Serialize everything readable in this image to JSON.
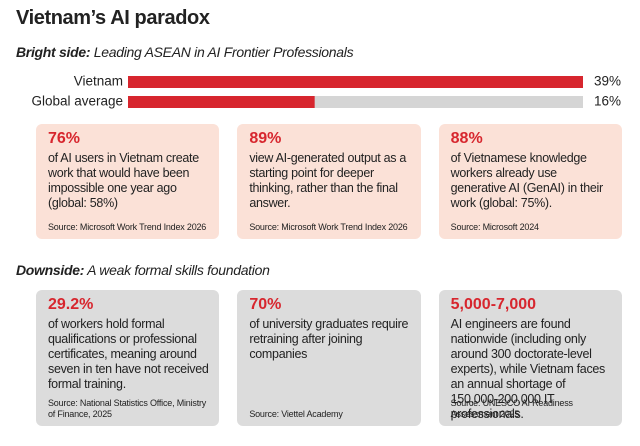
{
  "title": "Vietnam’s AI paradox",
  "chart_data": {
    "type": "bar",
    "subtitle_label": "Bright side:",
    "subtitle": "Leading ASEAN in AI Frontier Professionals",
    "categories": [
      "Vietnam",
      "Global average"
    ],
    "values": [
      39,
      16
    ],
    "value_labels": [
      "39%",
      "16%"
    ],
    "color": "#d7262e",
    "track_color": "#d5d5d5",
    "xlim": [
      0,
      39
    ]
  },
  "bright_cards": [
    {
      "stat": "76%",
      "text": "of AI users in Vietnam create work that would have been impossible one year ago (global: 58%)",
      "source": "Source: Microsoft Work Trend Index 2026"
    },
    {
      "stat": "89%",
      "text": "view AI-generated output as a starting point for deeper thinking, rather than the final answer.",
      "source": "Source: Microsoft Work Trend Index 2026"
    },
    {
      "stat": "88%",
      "text": "of Vietnamese knowledge workers already use generative AI (GenAI) in their work (global: 75%).",
      "source": "Source: Microsoft 2024"
    }
  ],
  "downside": {
    "label": "Downside:",
    "text": "A weak formal skills foundation"
  },
  "downside_cards": [
    {
      "stat": "29.2%",
      "text": "of workers hold formal qualifications or professional certificates, meaning around seven in ten have not received formal training.",
      "source": "Source: National Statistics Office, Ministry of Finance, 2025"
    },
    {
      "stat": "70%",
      "text": "of university graduates require retraining after joining companies",
      "source": "Source: Viettel Academy"
    },
    {
      "stat": "5,000-7,000",
      "text": "AI engineers are found nationwide (including only around 300 doctorate-level experts), while Vietnam faces an annual shortage of 150,000-200,000 IT professionals.",
      "source": "Source: UNESCO AI Readiness Assessment 2025"
    }
  ]
}
